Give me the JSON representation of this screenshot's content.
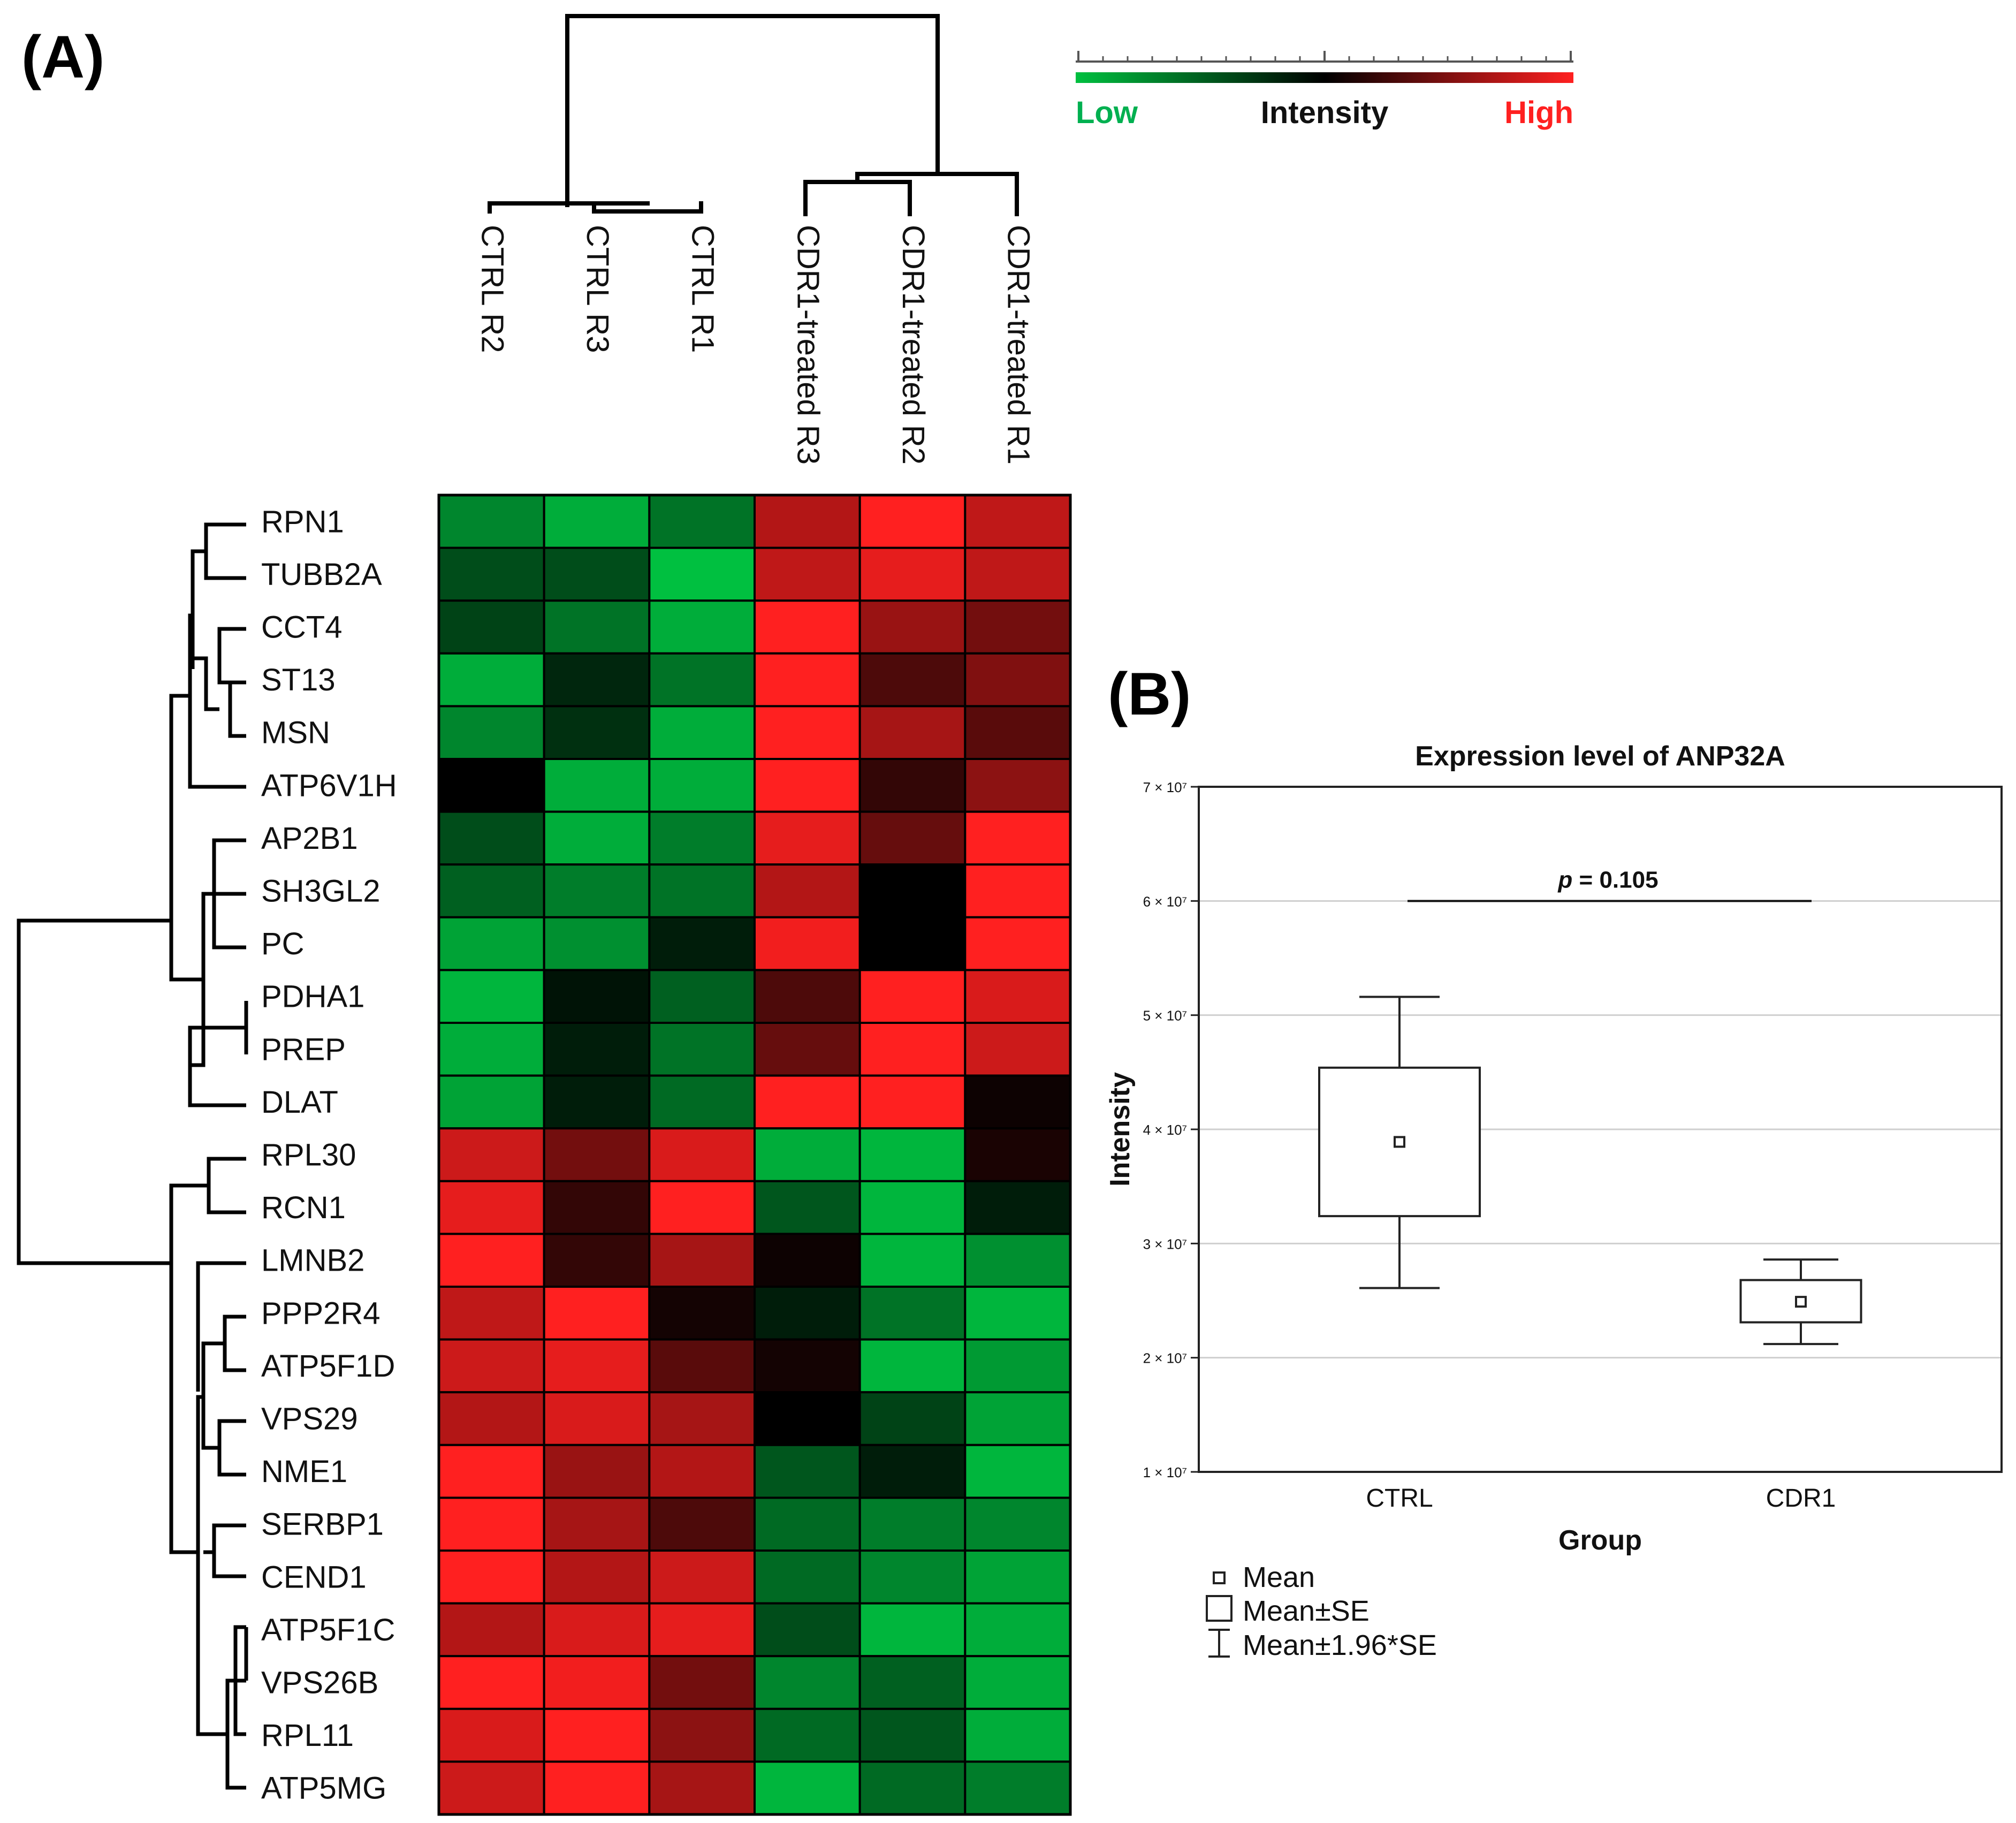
{
  "panel_a": {
    "label": "(A)",
    "colorbar": {
      "low_label": "Low",
      "mid_label": "Intensity",
      "high_label": "High",
      "low_color": "#00c040",
      "mid_color": "#000000",
      "high_color": "#ff2020"
    }
  },
  "panel_b": {
    "label": "(B)",
    "legend": {
      "mean": "Mean",
      "se": "Mean±SE",
      "ci": "Mean±1.96*SE"
    }
  },
  "chart_data": [
    {
      "type": "heatmap",
      "title": "",
      "columns": [
        "CTRL R2",
        "CTRL R3",
        "CTRL R1",
        "CDR1-treated R3",
        "CDR1-treated R2",
        "CDR1-treated R1"
      ],
      "rows": [
        "RPN1",
        "TUBB2A",
        "CCT4",
        "ST13",
        "MSN",
        "ATP6V1H",
        "AP2B1",
        "SH3GL2",
        "PC",
        "PDHA1",
        "PREP",
        "DLAT",
        "RPL30",
        "RCN1",
        "LMNB2",
        "PPP2R4",
        "ATP5F1D",
        "VPS29",
        "NME1",
        "SERBP1",
        "CEND1",
        "ATP5F1C",
        "VPS26B",
        "RPL11",
        "ATP5MG"
      ],
      "values_scale": "-1 = low (green), 0 = black, 1 = high (red)",
      "values": [
        [
          -0.7,
          -0.9,
          -0.6,
          0.7,
          1.0,
          0.75
        ],
        [
          -0.4,
          -0.4,
          -1.0,
          0.75,
          0.9,
          0.75
        ],
        [
          -0.35,
          -0.6,
          -0.9,
          1.0,
          0.6,
          0.45
        ],
        [
          -0.9,
          -0.2,
          -0.6,
          1.0,
          0.3,
          0.5
        ],
        [
          -0.7,
          -0.25,
          -0.9,
          1.0,
          0.65,
          0.35
        ],
        [
          0.0,
          -0.9,
          -0.9,
          1.0,
          0.2,
          0.55
        ],
        [
          -0.4,
          -0.9,
          -0.65,
          0.9,
          0.4,
          1.0
        ],
        [
          -0.5,
          -0.65,
          -0.6,
          0.7,
          0.0,
          1.0
        ],
        [
          -0.85,
          -0.75,
          -0.15,
          0.95,
          0.0,
          1.0
        ],
        [
          -0.95,
          -0.1,
          -0.5,
          0.3,
          1.0,
          0.85
        ],
        [
          -0.9,
          -0.15,
          -0.6,
          0.4,
          1.0,
          0.8
        ],
        [
          -0.85,
          -0.15,
          -0.55,
          1.0,
          1.0,
          0.05
        ],
        [
          0.8,
          0.45,
          0.85,
          -0.9,
          -0.95,
          0.1
        ],
        [
          0.9,
          0.2,
          1.0,
          -0.45,
          -0.95,
          -0.15
        ],
        [
          1.0,
          0.2,
          0.65,
          0.05,
          -0.95,
          -0.75
        ],
        [
          0.75,
          1.0,
          0.08,
          -0.15,
          -0.6,
          -0.95
        ],
        [
          0.8,
          0.9,
          0.35,
          0.08,
          -0.95,
          -0.8
        ],
        [
          0.7,
          0.85,
          0.65,
          0.0,
          -0.35,
          -0.85
        ],
        [
          1.0,
          0.6,
          0.7,
          -0.45,
          -0.15,
          -0.95
        ],
        [
          1.0,
          0.65,
          0.3,
          -0.55,
          -0.65,
          -0.7
        ],
        [
          1.0,
          0.7,
          0.8,
          -0.55,
          -0.7,
          -0.85
        ],
        [
          0.7,
          0.85,
          0.9,
          -0.4,
          -0.95,
          -0.9
        ],
        [
          1.0,
          0.95,
          0.45,
          -0.7,
          -0.5,
          -0.9
        ],
        [
          0.85,
          1.0,
          0.55,
          -0.55,
          -0.45,
          -0.9
        ],
        [
          0.8,
          1.0,
          0.65,
          -0.95,
          -0.55,
          -0.65
        ]
      ]
    },
    {
      "type": "box",
      "title": "Expression level of ANP32A",
      "xlabel": "Group",
      "ylabel": "Intensity",
      "categories": [
        "CTRL",
        "CDR1"
      ],
      "y_ticks": [
        "1 × 10⁷",
        "2 × 10⁷",
        "3 × 10⁷",
        "4 × 10⁷",
        "5 × 10⁷",
        "6 × 10⁷",
        "7 × 10⁷"
      ],
      "y_tick_values": [
        10000000,
        20000000,
        30000000,
        40000000,
        50000000,
        60000000,
        70000000
      ],
      "ylim": [
        10000000,
        70000000
      ],
      "grid": true,
      "series": [
        {
          "name": "CTRL",
          "mean": 38900000,
          "se_low": 32400000,
          "se_high": 45400000,
          "ci_low": 26100000,
          "ci_high": 51600000
        },
        {
          "name": "CDR1",
          "mean": 24900000,
          "se_low": 23100000,
          "se_high": 26800000,
          "ci_low": 21200000,
          "ci_high": 28600000
        }
      ],
      "annotation": {
        "p_symbol": "p",
        "p_value": " = 0.105"
      }
    }
  ]
}
